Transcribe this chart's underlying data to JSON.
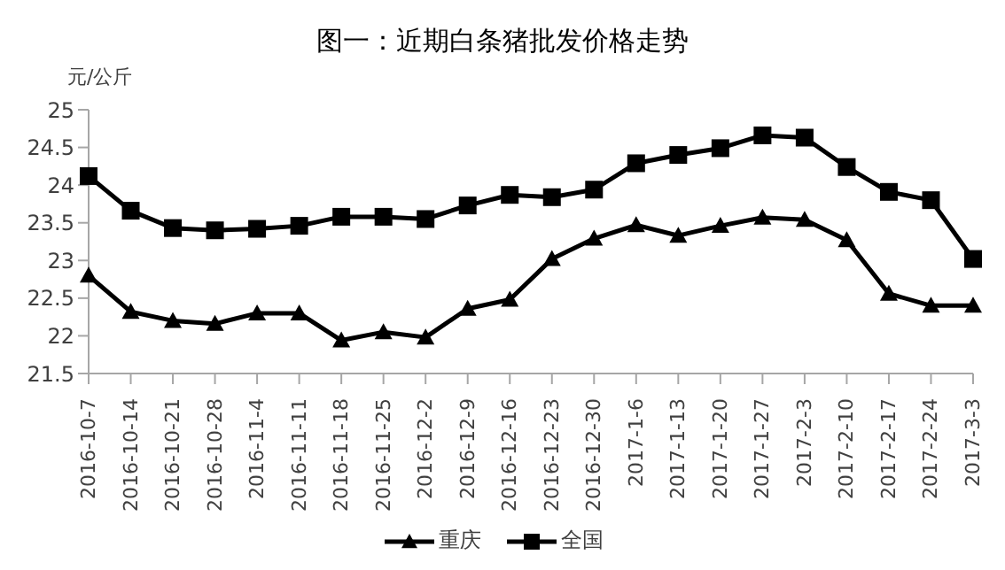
{
  "chart_data": {
    "type": "line",
    "title": "图一：近期白条猪批发价格走势",
    "ylabel": "元/公斤",
    "categories": [
      "2016-10-7",
      "2016-10-14",
      "2016-10-21",
      "2016-10-28",
      "2016-11-4",
      "2016-11-11",
      "2016-11-18",
      "2016-11-25",
      "2016-12-2",
      "2016-12-9",
      "2016-12-16",
      "2016-12-23",
      "2016-12-30",
      "2017-1-6",
      "2017-1-13",
      "2017-1-20",
      "2017-1-27",
      "2017-2-3",
      "2017-2-10",
      "2017-2-17",
      "2017-2-24",
      "2017-3-3"
    ],
    "series": [
      {
        "name": "重庆",
        "color": "#000000",
        "marker": "triangle",
        "values": [
          22.8,
          22.32,
          22.2,
          22.16,
          22.3,
          22.3,
          21.94,
          22.05,
          21.98,
          22.36,
          22.48,
          23.02,
          23.29,
          23.47,
          23.33,
          23.46,
          23.57,
          23.54,
          23.27,
          22.56,
          22.4,
          22.4
        ]
      },
      {
        "name": "全国",
        "color": "#000000",
        "marker": "square",
        "values": [
          24.12,
          23.66,
          23.43,
          23.4,
          23.42,
          23.46,
          23.58,
          23.58,
          23.55,
          23.73,
          23.87,
          23.84,
          23.94,
          24.29,
          24.4,
          24.49,
          24.66,
          24.63,
          24.24,
          23.91,
          23.8,
          23.02
        ]
      }
    ],
    "ylim": [
      21.5,
      25
    ],
    "yticks": [
      21.5,
      22,
      22.5,
      23,
      23.5,
      24,
      24.5,
      25
    ],
    "grid": false,
    "legend": "bottom",
    "line_style": "solid"
  }
}
